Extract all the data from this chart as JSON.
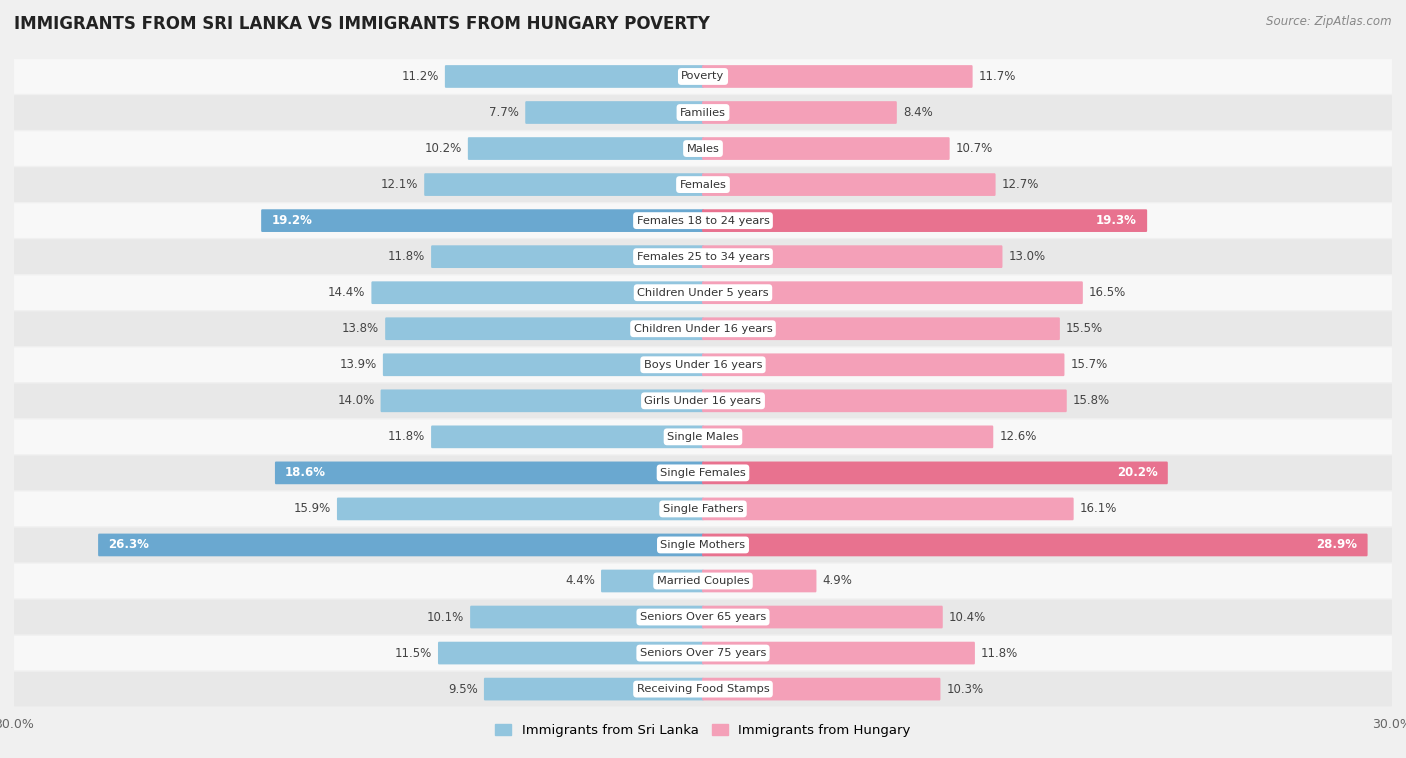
{
  "title": "IMMIGRANTS FROM SRI LANKA VS IMMIGRANTS FROM HUNGARY POVERTY",
  "source": "Source: ZipAtlas.com",
  "categories": [
    "Poverty",
    "Families",
    "Males",
    "Females",
    "Females 18 to 24 years",
    "Females 25 to 34 years",
    "Children Under 5 years",
    "Children Under 16 years",
    "Boys Under 16 years",
    "Girls Under 16 years",
    "Single Males",
    "Single Females",
    "Single Fathers",
    "Single Mothers",
    "Married Couples",
    "Seniors Over 65 years",
    "Seniors Over 75 years",
    "Receiving Food Stamps"
  ],
  "sri_lanka": [
    11.2,
    7.7,
    10.2,
    12.1,
    19.2,
    11.8,
    14.4,
    13.8,
    13.9,
    14.0,
    11.8,
    18.6,
    15.9,
    26.3,
    4.4,
    10.1,
    11.5,
    9.5
  ],
  "hungary": [
    11.7,
    8.4,
    10.7,
    12.7,
    19.3,
    13.0,
    16.5,
    15.5,
    15.7,
    15.8,
    12.6,
    20.2,
    16.1,
    28.9,
    4.9,
    10.4,
    11.8,
    10.3
  ],
  "sri_lanka_color_normal": "#92c5de",
  "sri_lanka_color_highlight": "#6aa8d0",
  "hungary_color_normal": "#f4a0b8",
  "hungary_color_highlight": "#e8728f",
  "highlight_rows": [
    4,
    11,
    13
  ],
  "xlim": 30.0,
  "legend_sri_lanka": "Immigrants from Sri Lanka",
  "legend_hungary": "Immigrants from Hungary",
  "background_color": "#f0f0f0",
  "row_bg_light": "#f8f8f8",
  "row_bg_dark": "#e8e8e8"
}
